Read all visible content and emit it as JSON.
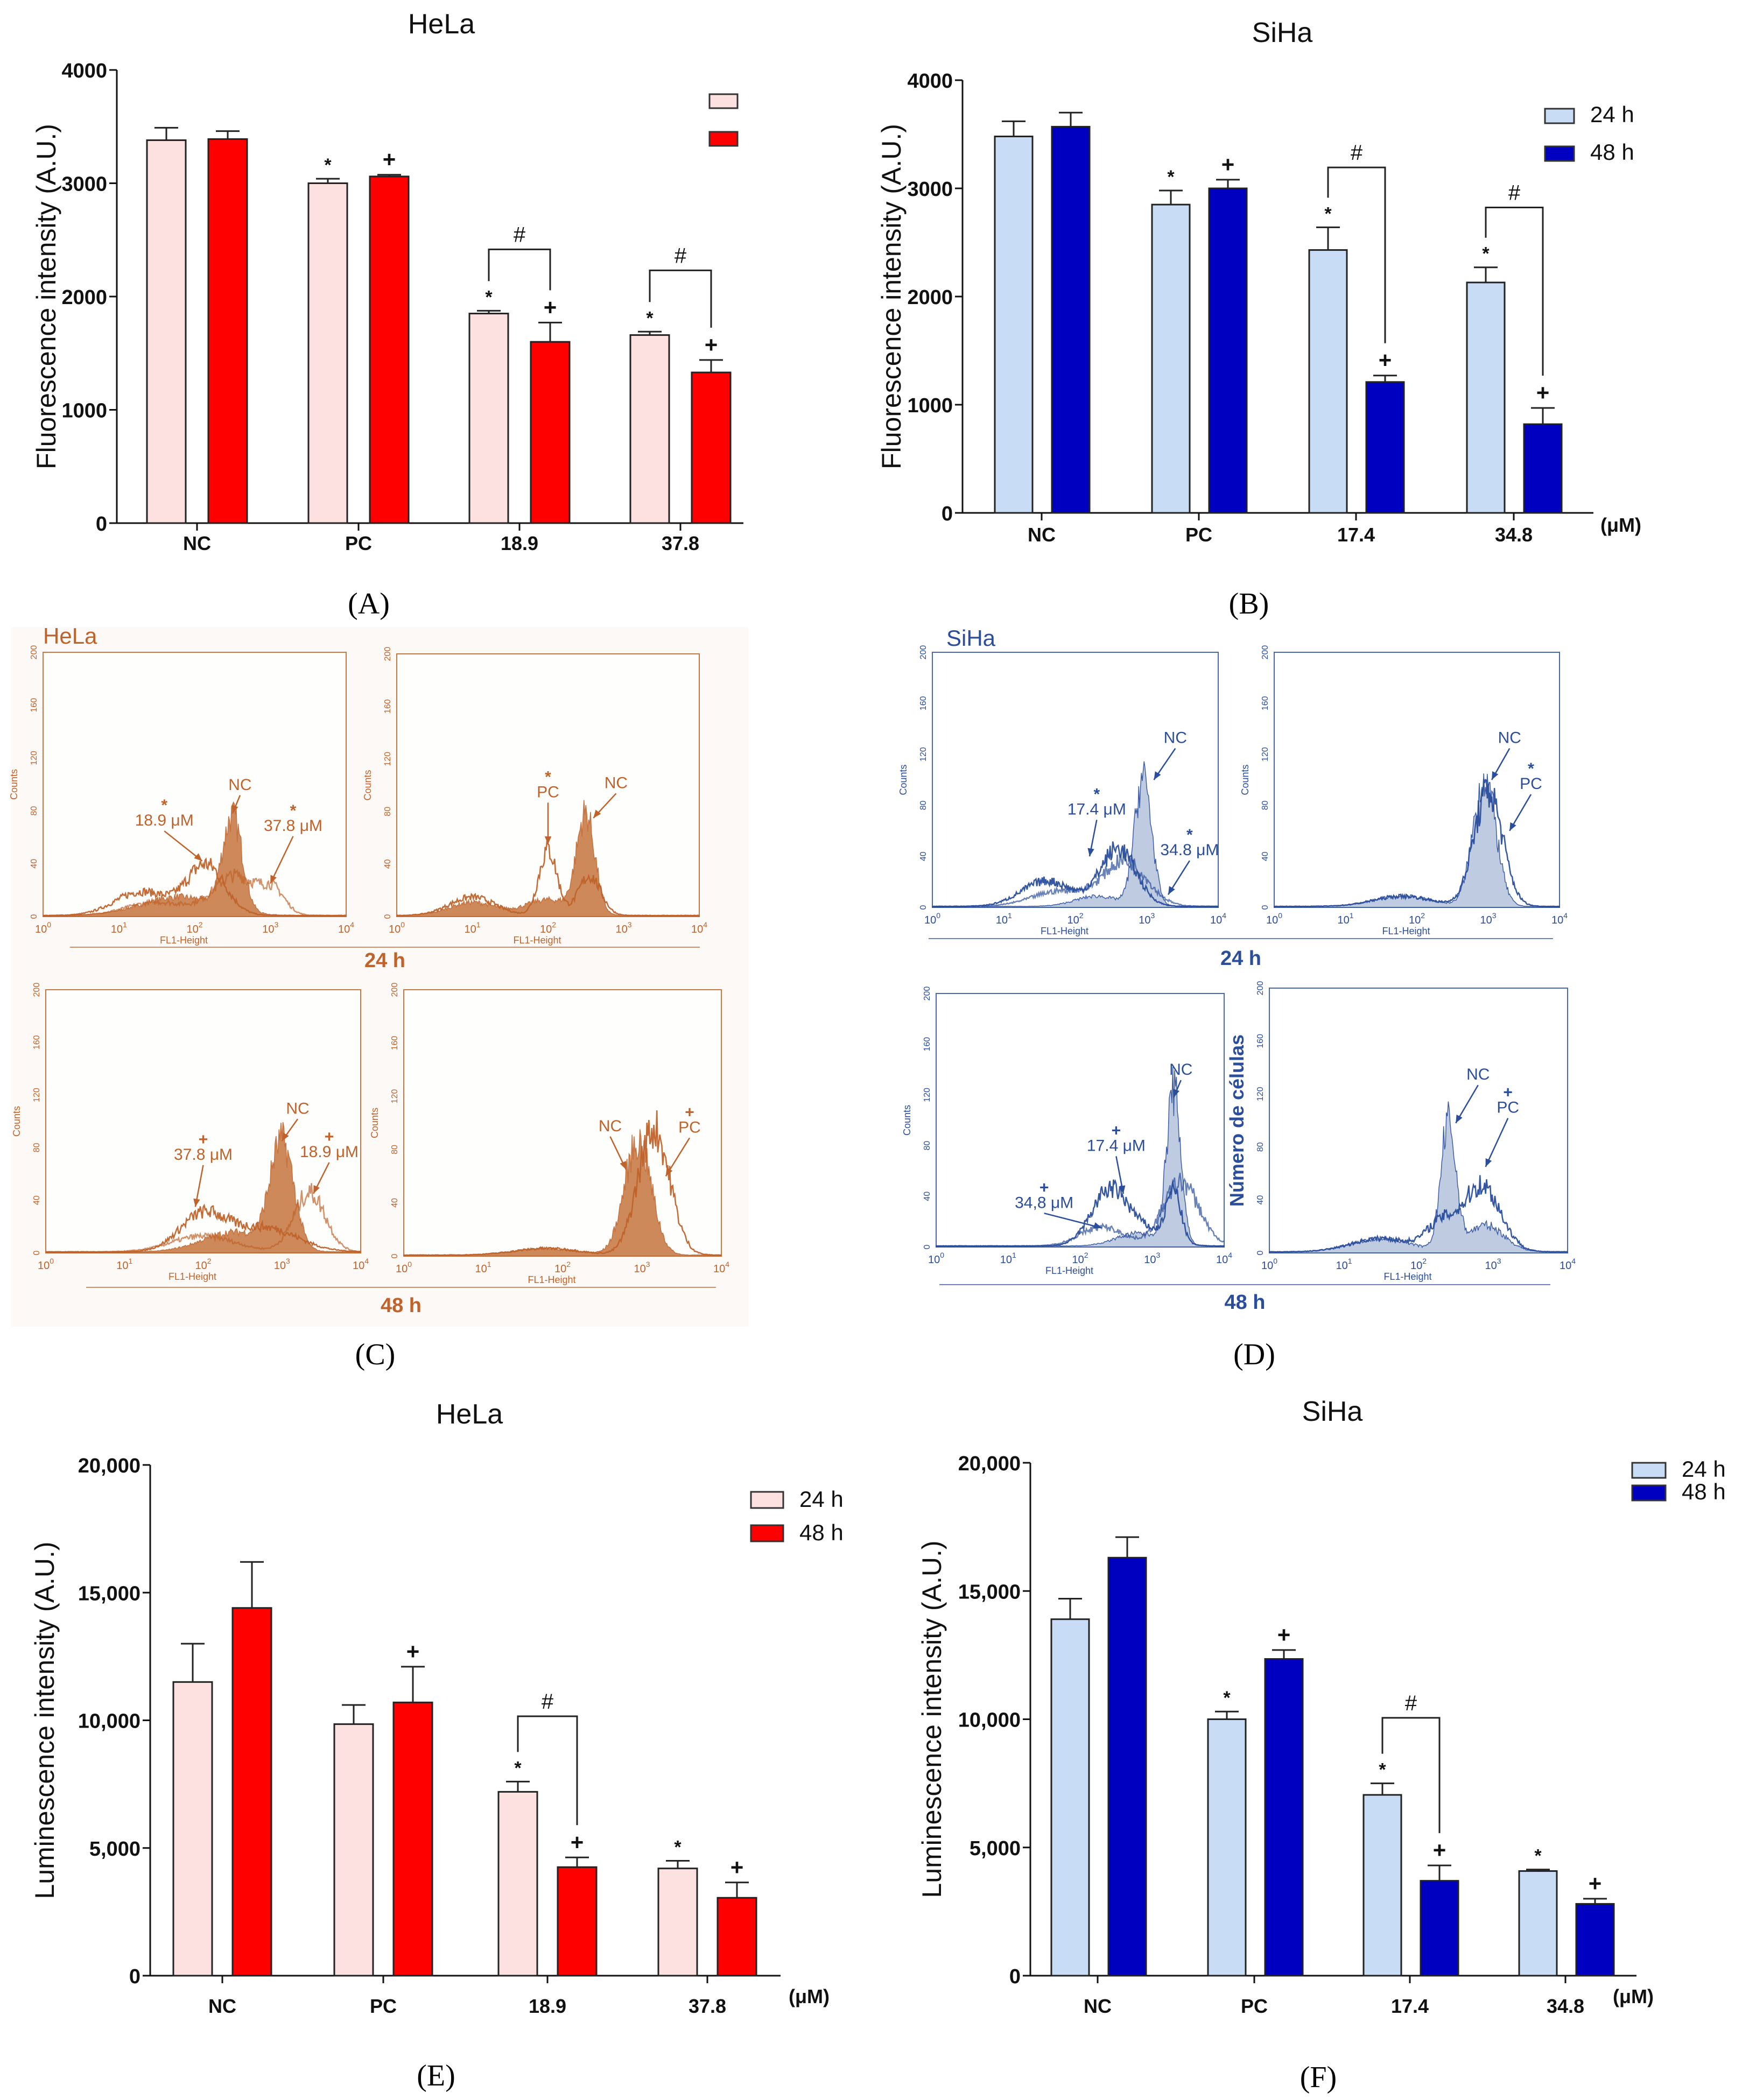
{
  "figure": {
    "panel_labels": [
      "(A)",
      "(B)",
      "(C)",
      "(D)",
      "(E)",
      "(F)"
    ]
  },
  "chart_data": [
    {
      "id": "A",
      "type": "bar",
      "title": "HeLa",
      "ylabel": "Fluorescence intensity (A.U.)",
      "xlabel": "",
      "unit": "",
      "categories": [
        "NC",
        "PC",
        "18.9",
        "37.8"
      ],
      "ylim": [
        0,
        4000
      ],
      "yticks": [
        "0",
        "1000",
        "2000",
        "3000",
        "4000"
      ],
      "ytick_values": [
        0,
        1000,
        2000,
        3000,
        4000
      ],
      "grid": false,
      "legend_position": "top-right",
      "series": [
        {
          "name": "",
          "color": "#fde0e0",
          "values": [
            3380,
            3000,
            1850,
            1660
          ],
          "errors": [
            110,
            40,
            25,
            30
          ],
          "marks": [
            "",
            "*",
            "*",
            "*"
          ]
        },
        {
          "name": "",
          "color": "#ff0000",
          "values": [
            3390,
            3060,
            1600,
            1330
          ],
          "errors": [
            70,
            15,
            170,
            110
          ],
          "marks": [
            "",
            "+",
            "+",
            "+"
          ]
        }
      ],
      "brackets": [
        {
          "category": 2,
          "mark": "#"
        },
        {
          "category": 3,
          "mark": "#"
        }
      ]
    },
    {
      "id": "B",
      "type": "bar",
      "title": "SiHa",
      "ylabel": "Fluorescence intensity (A.U.)",
      "xlabel": "",
      "unit": "(μM)",
      "categories": [
        "NC",
        "PC",
        "17.4",
        "34.8"
      ],
      "ylim": [
        0,
        4000
      ],
      "yticks": [
        "0",
        "1000",
        "2000",
        "3000",
        "4000"
      ],
      "ytick_values": [
        0,
        1000,
        2000,
        3000,
        4000
      ],
      "grid": false,
      "legend_position": "top-right",
      "series": [
        {
          "name": "24 h",
          "color": "#c9dcf5",
          "values": [
            3480,
            2850,
            2430,
            2130
          ],
          "errors": [
            140,
            130,
            210,
            140
          ],
          "marks": [
            "",
            "*",
            "*",
            "*"
          ]
        },
        {
          "name": "48 h",
          "color": "#0000c0",
          "values": [
            3570,
            3000,
            1210,
            820
          ],
          "errors": [
            130,
            80,
            60,
            150
          ],
          "marks": [
            "",
            "+",
            "+",
            "+"
          ]
        }
      ],
      "brackets": [
        {
          "category": 2,
          "mark": "#"
        },
        {
          "category": 3,
          "mark": "#"
        }
      ]
    },
    {
      "id": "E",
      "type": "bar",
      "title": "HeLa",
      "ylabel": "Luminescence intensity (A.U.)",
      "xlabel": "",
      "unit": "(μM)",
      "categories": [
        "NC",
        "PC",
        "18.9",
        "37.8"
      ],
      "ylim": [
        0,
        20000
      ],
      "yticks": [
        "0",
        "5,000",
        "10,000",
        "15,000",
        "20,000"
      ],
      "ytick_values": [
        0,
        5000,
        10000,
        15000,
        20000
      ],
      "grid": false,
      "legend_position": "top-right",
      "series": [
        {
          "name": "24 h",
          "color": "#fde0e0",
          "values": [
            11500,
            9850,
            7200,
            4200
          ],
          "errors": [
            1500,
            750,
            400,
            300
          ],
          "marks": [
            "",
            "",
            "*",
            "*"
          ]
        },
        {
          "name": "48 h",
          "color": "#ff0000",
          "values": [
            14400,
            10700,
            4250,
            3050
          ],
          "errors": [
            1800,
            1400,
            380,
            600
          ],
          "marks": [
            "",
            "+",
            "+",
            "+"
          ]
        }
      ],
      "brackets": [
        {
          "category": 2,
          "mark": "#"
        }
      ]
    },
    {
      "id": "F",
      "type": "bar",
      "title": "SiHa",
      "ylabel": "Luminescence intensity (A.U.)",
      "xlabel": "",
      "unit": "(μM)",
      "categories": [
        "NC",
        "PC",
        "17.4",
        "34.8"
      ],
      "ylim": [
        0,
        20000
      ],
      "yticks": [
        "0",
        "5,000",
        "10,000",
        "15,000",
        "20,000"
      ],
      "ytick_values": [
        0,
        5000,
        10000,
        15000,
        20000
      ],
      "grid": false,
      "legend_position": "top-right",
      "series": [
        {
          "name": "24 h",
          "color": "#c9dcf5",
          "values": [
            13900,
            10000,
            7050,
            4080
          ],
          "errors": [
            800,
            300,
            450,
            60
          ],
          "marks": [
            "",
            "*",
            "*",
            "*"
          ]
        },
        {
          "name": "48 h",
          "color": "#0000c0",
          "values": [
            16300,
            12350,
            3700,
            2800
          ],
          "errors": [
            800,
            350,
            600,
            200
          ],
          "marks": [
            "",
            "+",
            "+",
            "+"
          ]
        }
      ],
      "brackets": [
        {
          "category": 2,
          "mark": "#"
        }
      ]
    },
    {
      "id": "C",
      "type": "histogram",
      "title": "HeLa",
      "color": "#c0622a",
      "fill": "#c87d48",
      "xlabel": "FL1-Height",
      "ylabel": "Counts",
      "xticks": [
        "10",
        "10",
        "10",
        "10",
        "10"
      ],
      "xtick_exponents": [
        "0",
        "1",
        "2",
        "3",
        "4"
      ],
      "yticks": [
        "0",
        "40",
        "80",
        "120",
        "160",
        "200"
      ],
      "xlim_log10": [
        0,
        4
      ],
      "ylim": [
        0,
        200
      ],
      "time_labels": [
        "24 h",
        "48 h"
      ],
      "plots": [
        {
          "ylabel": "Counts",
          "curves": [
            {
              "label": "NC",
              "mark": "",
              "filled": true,
              "components": [
                [
                  2.5,
                  0.13,
                  70
                ],
                [
                  1.8,
                  0.5,
                  14
                ]
              ]
            },
            {
              "label": "18.9 μM",
              "mark": "*",
              "filled": false,
              "components": [
                [
                  2.15,
                  0.25,
                  38
                ],
                [
                  1.3,
                  0.35,
                  18
                ]
              ]
            },
            {
              "label": "37.8 μM",
              "mark": "*",
              "filled": false,
              "components": [
                [
                  2.55,
                  0.3,
                  30
                ],
                [
                  3.05,
                  0.15,
                  15
                ],
                [
                  1.5,
                  0.4,
                  10
                ]
              ]
            }
          ]
        },
        {
          "ylabel": "Counts",
          "curves": [
            {
              "label": "NC",
              "mark": "",
              "filled": true,
              "components": [
                [
                  2.5,
                  0.12,
                  75
                ],
                [
                  2.0,
                  0.3,
                  12
                ],
                [
                  1.0,
                  0.3,
                  10
                ]
              ]
            },
            {
              "label": "PC",
              "mark": "*",
              "filled": false,
              "components": [
                [
                  2.0,
                  0.12,
                  50
                ],
                [
                  2.55,
                  0.15,
                  30
                ],
                [
                  1.0,
                  0.3,
                  14
                ]
              ]
            }
          ]
        },
        {
          "ylabel": "Counts",
          "curves": [
            {
              "label": "NC",
              "mark": "",
              "filled": true,
              "components": [
                [
                  3.0,
                  0.15,
                  80
                ],
                [
                  2.4,
                  0.4,
                  15
                ]
              ]
            },
            {
              "label": "37.8 μM",
              "mark": "+",
              "filled": false,
              "components": [
                [
                  2.0,
                  0.3,
                  28
                ],
                [
                  2.8,
                  0.4,
                  18
                ]
              ]
            },
            {
              "label": "18.9 μM",
              "mark": "+",
              "filled": false,
              "components": [
                [
                  3.35,
                  0.2,
                  45
                ],
                [
                  2.0,
                  0.4,
                  12
                ]
              ]
            }
          ]
        },
        {
          "ylabel": "Counts",
          "curves": [
            {
              "label": "NC",
              "mark": "",
              "filled": true,
              "components": [
                [
                  2.95,
                  0.17,
                  85
                ],
                [
                  1.8,
                  0.4,
                  5
                ]
              ]
            },
            {
              "label": "PC",
              "mark": "+",
              "filled": false,
              "components": [
                [
                  3.15,
                  0.2,
                  95
                ],
                [
                  1.8,
                  0.4,
                  5
                ]
              ]
            }
          ]
        }
      ]
    },
    {
      "id": "D",
      "type": "histogram",
      "title": "SiHa",
      "color": "#2a4d9c",
      "fill": "#b9c6de",
      "xlabel": "FL1-Height",
      "ylabel": "Counts",
      "xticks": [
        "10",
        "10",
        "10",
        "10",
        "10"
      ],
      "xtick_exponents": [
        "0",
        "1",
        "2",
        "3",
        "4"
      ],
      "yticks": [
        "0",
        "40",
        "80",
        "120",
        "160",
        "200"
      ],
      "xlim_log10": [
        0,
        4
      ],
      "ylim": [
        0,
        200
      ],
      "time_labels": [
        "24 h",
        "48 h"
      ],
      "plots": [
        {
          "ylabel": "Counts",
          "curves": [
            {
              "label": "NC",
              "mark": "",
              "filled": true,
              "components": [
                [
                  2.95,
                  0.12,
                  100
                ],
                [
                  2.3,
                  0.3,
                  8
                ]
              ]
            },
            {
              "label": "17.4 μM",
              "mark": "*",
              "filled": false,
              "components": [
                [
                  2.6,
                  0.25,
                  45
                ],
                [
                  1.6,
                  0.35,
                  20
                ]
              ]
            },
            {
              "label": "34.8 μM",
              "mark": "*",
              "filled": false,
              "components": [
                [
                  2.7,
                  0.3,
                  35
                ],
                [
                  1.8,
                  0.4,
                  12
                ]
              ]
            }
          ]
        },
        {
          "ylabel": "Counts",
          "curves": [
            {
              "label": "NC",
              "mark": "",
              "filled": true,
              "components": [
                [
                  2.95,
                  0.16,
                  100
                ],
                [
                  1.8,
                  0.4,
                  8
                ]
              ]
            },
            {
              "label": "PC",
              "mark": "*",
              "filled": false,
              "components": [
                [
                  3.0,
                  0.2,
                  90
                ],
                [
                  1.8,
                  0.4,
                  8
                ]
              ]
            }
          ]
        },
        {
          "ylabel": "Counts",
          "curves": [
            {
              "label": "NC",
              "mark": "",
              "filled": true,
              "components": [
                [
                  3.3,
                  0.1,
                  120
                ],
                [
                  2.8,
                  0.3,
                  10
                ]
              ]
            },
            {
              "label": "17.4 μM",
              "mark": "+",
              "filled": false,
              "components": [
                [
                  2.4,
                  0.25,
                  42
                ],
                [
                  3.3,
                  0.1,
                  40
                ],
                [
                  2.9,
                  0.3,
                  12
                ]
              ]
            },
            {
              "label": "34,8 μM",
              "mark": "+",
              "filled": false,
              "components": [
                [
                  2.3,
                  0.3,
                  15
                ],
                [
                  3.4,
                  0.25,
                  50
                ]
              ]
            }
          ]
        },
        {
          "ylabel": "Número de células",
          "curves": [
            {
              "label": "NC",
              "mark": "",
              "filled": true,
              "components": [
                [
                  2.4,
                  0.1,
                  95
                ],
                [
                  2.9,
                  0.25,
                  20
                ],
                [
                  1.5,
                  0.4,
                  10
                ]
              ]
            },
            {
              "label": "PC",
              "mark": "+",
              "filled": false,
              "components": [
                [
                  2.85,
                  0.25,
                  50
                ],
                [
                  2.3,
                  0.2,
                  20
                ],
                [
                  1.5,
                  0.4,
                  10
                ]
              ]
            }
          ]
        }
      ]
    }
  ]
}
